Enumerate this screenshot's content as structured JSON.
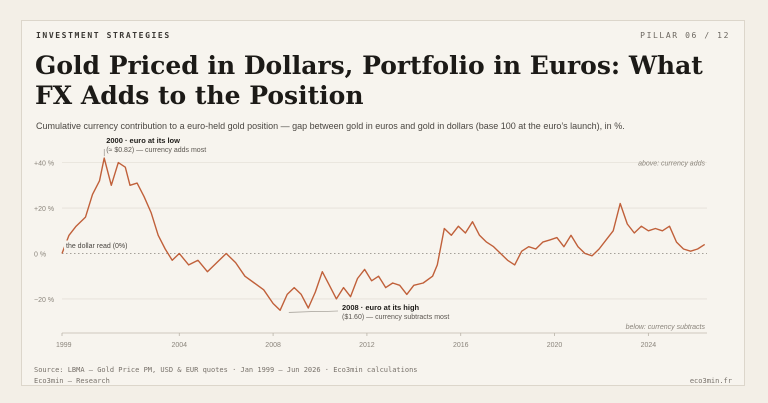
{
  "header": {
    "kicker": "INVESTMENT STRATEGIES",
    "pillar": "PILLAR 06 / 12",
    "title": "Gold Priced in Dollars, Portfolio in Euros: What FX Adds to the Position",
    "subtitle": "Cumulative currency contribution to a euro-held gold position — gap between gold in euros and gold in dollars (base 100 at the euro’s launch), in %."
  },
  "colors": {
    "line": "#c0603a",
    "zero_line": "#8a857d",
    "grid": "#e6e1d8",
    "text_muted": "#8b857c"
  },
  "chart_data": {
    "type": "line",
    "xlabel": "",
    "ylabel": "",
    "xlim": [
      1999,
      2026.5
    ],
    "ylim": [
      -35,
      46
    ],
    "yticks": [
      40,
      20,
      0,
      -20
    ],
    "ytick_labels": [
      "+40 %",
      "+20 %",
      "0 %",
      "−20 %"
    ],
    "xticks": [
      1999,
      2004,
      2008,
      2012,
      2016,
      2020,
      2024
    ],
    "xtick_labels": [
      "1999",
      "2004",
      "2008",
      "2012",
      "2016",
      "2020",
      "2024"
    ],
    "zero_label": "the dollar read (0%)",
    "region_labels": {
      "above": "above: currency adds",
      "below": "below: currency subtracts"
    },
    "annotations": [
      {
        "x": 2000.8,
        "y": 42,
        "title": "2000 · euro at its low",
        "text": "(≈ $0.82) — currency adds most"
      },
      {
        "x": 2008.5,
        "y": -25,
        "title": "2008 · euro at its high",
        "text": "($1.60) — currency subtracts most"
      }
    ],
    "series": [
      {
        "x": [
          1999.0,
          1999.3,
          1999.6,
          2000.0,
          2000.3,
          2000.6,
          2000.8,
          2001.1,
          2001.4,
          2001.7,
          2001.9,
          2002.2,
          2002.5,
          2002.8,
          2003.1,
          2003.4,
          2003.7,
          2004.0,
          2004.4,
          2004.8,
          2005.2,
          2005.6,
          2006.0,
          2006.4,
          2006.8,
          2007.2,
          2007.6,
          2008.0,
          2008.3,
          2008.6,
          2008.9,
          2009.2,
          2009.5,
          2009.8,
          2010.1,
          2010.4,
          2010.7,
          2011.0,
          2011.3,
          2011.6,
          2011.9,
          2012.2,
          2012.5,
          2012.8,
          2013.1,
          2013.4,
          2013.7,
          2014.0,
          2014.4,
          2014.8,
          2015.0,
          2015.3,
          2015.6,
          2015.9,
          2016.2,
          2016.5,
          2016.8,
          2017.1,
          2017.4,
          2017.7,
          2018.0,
          2018.3,
          2018.6,
          2018.9,
          2019.2,
          2019.5,
          2019.8,
          2020.1,
          2020.4,
          2020.7,
          2021.0,
          2021.3,
          2021.6,
          2021.9,
          2022.2,
          2022.5,
          2022.8,
          2023.1,
          2023.4,
          2023.7,
          2024.0,
          2024.3,
          2024.6,
          2024.9,
          2025.2,
          2025.5,
          2025.8,
          2026.1,
          2026.4
        ],
        "values": [
          0,
          8,
          12,
          16,
          26,
          32,
          42,
          30,
          40,
          38,
          30,
          31,
          25,
          18,
          8,
          2,
          -3,
          0,
          -5,
          -3,
          -8,
          -4,
          0,
          -4,
          -10,
          -13,
          -16,
          -22,
          -25,
          -18,
          -15,
          -18,
          -24,
          -17,
          -8,
          -14,
          -20,
          -15,
          -19,
          -11,
          -7,
          -12,
          -10,
          -15,
          -13,
          -14,
          -18,
          -14,
          -13,
          -10,
          -5,
          11,
          8,
          12,
          9,
          14,
          8,
          5,
          3,
          0,
          -3,
          -5,
          1,
          3,
          2,
          5,
          6,
          7,
          3,
          8,
          3,
          0,
          -1,
          2,
          6,
          10,
          22,
          13,
          9,
          12,
          10,
          11,
          10,
          12,
          5,
          2,
          1,
          2,
          4
        ]
      }
    ]
  },
  "footer": {
    "source": "Source: LBMA — Gold Price PM, USD & EUR quotes · Jan 1999 – Jun 2026 · Eco3min calculations",
    "brand": "Eco3min — Research",
    "site": "eco3min.fr"
  }
}
